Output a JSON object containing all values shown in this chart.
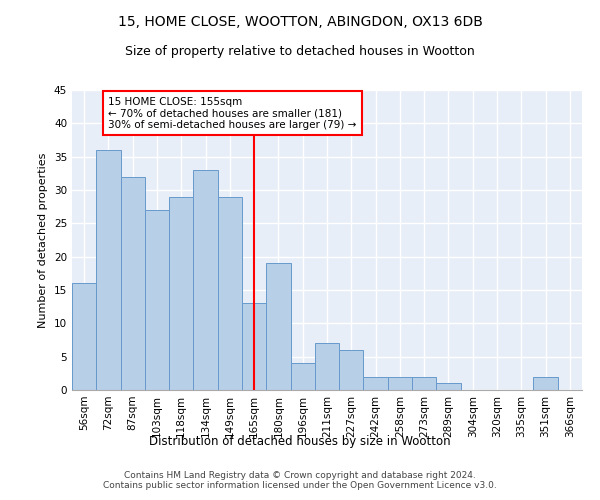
{
  "title1": "15, HOME CLOSE, WOOTTON, ABINGDON, OX13 6DB",
  "title2": "Size of property relative to detached houses in Wootton",
  "xlabel": "Distribution of detached houses by size in Wootton",
  "ylabel": "Number of detached properties",
  "categories": [
    "56sqm",
    "72sqm",
    "87sqm",
    "103sqm",
    "118sqm",
    "134sqm",
    "149sqm",
    "165sqm",
    "180sqm",
    "196sqm",
    "211sqm",
    "227sqm",
    "242sqm",
    "258sqm",
    "273sqm",
    "289sqm",
    "304sqm",
    "320sqm",
    "335sqm",
    "351sqm",
    "366sqm"
  ],
  "values": [
    16,
    36,
    32,
    27,
    29,
    33,
    29,
    13,
    19,
    4,
    7,
    6,
    2,
    2,
    2,
    1,
    0,
    0,
    0,
    2,
    0
  ],
  "bar_color": "#b8cfe8",
  "bar_edge_color": "#6699cc",
  "vline_x": 7,
  "vline_color": "red",
  "annotation_text": "15 HOME CLOSE: 155sqm\n← 70% of detached houses are smaller (181)\n30% of semi-detached houses are larger (79) →",
  "annotation_box_color": "white",
  "annotation_box_edge": "red",
  "ylim": [
    0,
    45
  ],
  "yticks": [
    0,
    5,
    10,
    15,
    20,
    25,
    30,
    35,
    40,
    45
  ],
  "bg_color": "#e8eef8",
  "grid_color": "white",
  "footer": "Contains HM Land Registry data © Crown copyright and database right 2024.\nContains public sector information licensed under the Open Government Licence v3.0.",
  "title1_fontsize": 10,
  "title2_fontsize": 9,
  "xlabel_fontsize": 8.5,
  "ylabel_fontsize": 8,
  "tick_fontsize": 7.5,
  "footer_fontsize": 6.5,
  "annot_fontsize": 7.5
}
